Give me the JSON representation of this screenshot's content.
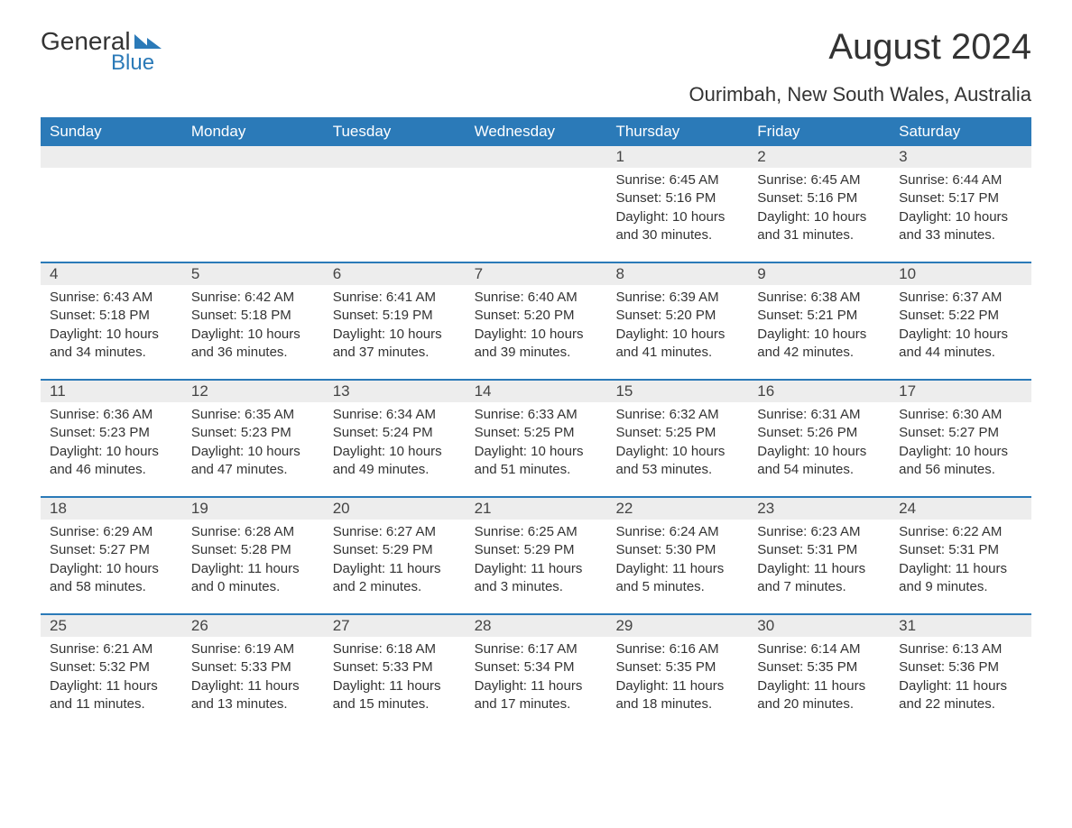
{
  "logo": {
    "text_general": "General",
    "text_blue": "Blue",
    "icon_color": "#2b7ab8"
  },
  "header": {
    "title": "August 2024",
    "location": "Ourimbah, New South Wales, Australia"
  },
  "colors": {
    "header_bg": "#2b7ab8",
    "header_text": "#ffffff",
    "daynum_bg": "#ededed",
    "week_border": "#2b7ab8",
    "body_text": "#333333",
    "page_bg": "#ffffff"
  },
  "weekdays": [
    "Sunday",
    "Monday",
    "Tuesday",
    "Wednesday",
    "Thursday",
    "Friday",
    "Saturday"
  ],
  "weeks": [
    [
      {
        "empty": true
      },
      {
        "empty": true
      },
      {
        "empty": true
      },
      {
        "empty": true
      },
      {
        "num": "1",
        "sunrise": "Sunrise: 6:45 AM",
        "sunset": "Sunset: 5:16 PM",
        "daylight1": "Daylight: 10 hours",
        "daylight2": "and 30 minutes."
      },
      {
        "num": "2",
        "sunrise": "Sunrise: 6:45 AM",
        "sunset": "Sunset: 5:16 PM",
        "daylight1": "Daylight: 10 hours",
        "daylight2": "and 31 minutes."
      },
      {
        "num": "3",
        "sunrise": "Sunrise: 6:44 AM",
        "sunset": "Sunset: 5:17 PM",
        "daylight1": "Daylight: 10 hours",
        "daylight2": "and 33 minutes."
      }
    ],
    [
      {
        "num": "4",
        "sunrise": "Sunrise: 6:43 AM",
        "sunset": "Sunset: 5:18 PM",
        "daylight1": "Daylight: 10 hours",
        "daylight2": "and 34 minutes."
      },
      {
        "num": "5",
        "sunrise": "Sunrise: 6:42 AM",
        "sunset": "Sunset: 5:18 PM",
        "daylight1": "Daylight: 10 hours",
        "daylight2": "and 36 minutes."
      },
      {
        "num": "6",
        "sunrise": "Sunrise: 6:41 AM",
        "sunset": "Sunset: 5:19 PM",
        "daylight1": "Daylight: 10 hours",
        "daylight2": "and 37 minutes."
      },
      {
        "num": "7",
        "sunrise": "Sunrise: 6:40 AM",
        "sunset": "Sunset: 5:20 PM",
        "daylight1": "Daylight: 10 hours",
        "daylight2": "and 39 minutes."
      },
      {
        "num": "8",
        "sunrise": "Sunrise: 6:39 AM",
        "sunset": "Sunset: 5:20 PM",
        "daylight1": "Daylight: 10 hours",
        "daylight2": "and 41 minutes."
      },
      {
        "num": "9",
        "sunrise": "Sunrise: 6:38 AM",
        "sunset": "Sunset: 5:21 PM",
        "daylight1": "Daylight: 10 hours",
        "daylight2": "and 42 minutes."
      },
      {
        "num": "10",
        "sunrise": "Sunrise: 6:37 AM",
        "sunset": "Sunset: 5:22 PM",
        "daylight1": "Daylight: 10 hours",
        "daylight2": "and 44 minutes."
      }
    ],
    [
      {
        "num": "11",
        "sunrise": "Sunrise: 6:36 AM",
        "sunset": "Sunset: 5:23 PM",
        "daylight1": "Daylight: 10 hours",
        "daylight2": "and 46 minutes."
      },
      {
        "num": "12",
        "sunrise": "Sunrise: 6:35 AM",
        "sunset": "Sunset: 5:23 PM",
        "daylight1": "Daylight: 10 hours",
        "daylight2": "and 47 minutes."
      },
      {
        "num": "13",
        "sunrise": "Sunrise: 6:34 AM",
        "sunset": "Sunset: 5:24 PM",
        "daylight1": "Daylight: 10 hours",
        "daylight2": "and 49 minutes."
      },
      {
        "num": "14",
        "sunrise": "Sunrise: 6:33 AM",
        "sunset": "Sunset: 5:25 PM",
        "daylight1": "Daylight: 10 hours",
        "daylight2": "and 51 minutes."
      },
      {
        "num": "15",
        "sunrise": "Sunrise: 6:32 AM",
        "sunset": "Sunset: 5:25 PM",
        "daylight1": "Daylight: 10 hours",
        "daylight2": "and 53 minutes."
      },
      {
        "num": "16",
        "sunrise": "Sunrise: 6:31 AM",
        "sunset": "Sunset: 5:26 PM",
        "daylight1": "Daylight: 10 hours",
        "daylight2": "and 54 minutes."
      },
      {
        "num": "17",
        "sunrise": "Sunrise: 6:30 AM",
        "sunset": "Sunset: 5:27 PM",
        "daylight1": "Daylight: 10 hours",
        "daylight2": "and 56 minutes."
      }
    ],
    [
      {
        "num": "18",
        "sunrise": "Sunrise: 6:29 AM",
        "sunset": "Sunset: 5:27 PM",
        "daylight1": "Daylight: 10 hours",
        "daylight2": "and 58 minutes."
      },
      {
        "num": "19",
        "sunrise": "Sunrise: 6:28 AM",
        "sunset": "Sunset: 5:28 PM",
        "daylight1": "Daylight: 11 hours",
        "daylight2": "and 0 minutes."
      },
      {
        "num": "20",
        "sunrise": "Sunrise: 6:27 AM",
        "sunset": "Sunset: 5:29 PM",
        "daylight1": "Daylight: 11 hours",
        "daylight2": "and 2 minutes."
      },
      {
        "num": "21",
        "sunrise": "Sunrise: 6:25 AM",
        "sunset": "Sunset: 5:29 PM",
        "daylight1": "Daylight: 11 hours",
        "daylight2": "and 3 minutes."
      },
      {
        "num": "22",
        "sunrise": "Sunrise: 6:24 AM",
        "sunset": "Sunset: 5:30 PM",
        "daylight1": "Daylight: 11 hours",
        "daylight2": "and 5 minutes."
      },
      {
        "num": "23",
        "sunrise": "Sunrise: 6:23 AM",
        "sunset": "Sunset: 5:31 PM",
        "daylight1": "Daylight: 11 hours",
        "daylight2": "and 7 minutes."
      },
      {
        "num": "24",
        "sunrise": "Sunrise: 6:22 AM",
        "sunset": "Sunset: 5:31 PM",
        "daylight1": "Daylight: 11 hours",
        "daylight2": "and 9 minutes."
      }
    ],
    [
      {
        "num": "25",
        "sunrise": "Sunrise: 6:21 AM",
        "sunset": "Sunset: 5:32 PM",
        "daylight1": "Daylight: 11 hours",
        "daylight2": "and 11 minutes."
      },
      {
        "num": "26",
        "sunrise": "Sunrise: 6:19 AM",
        "sunset": "Sunset: 5:33 PM",
        "daylight1": "Daylight: 11 hours",
        "daylight2": "and 13 minutes."
      },
      {
        "num": "27",
        "sunrise": "Sunrise: 6:18 AM",
        "sunset": "Sunset: 5:33 PM",
        "daylight1": "Daylight: 11 hours",
        "daylight2": "and 15 minutes."
      },
      {
        "num": "28",
        "sunrise": "Sunrise: 6:17 AM",
        "sunset": "Sunset: 5:34 PM",
        "daylight1": "Daylight: 11 hours",
        "daylight2": "and 17 minutes."
      },
      {
        "num": "29",
        "sunrise": "Sunrise: 6:16 AM",
        "sunset": "Sunset: 5:35 PM",
        "daylight1": "Daylight: 11 hours",
        "daylight2": "and 18 minutes."
      },
      {
        "num": "30",
        "sunrise": "Sunrise: 6:14 AM",
        "sunset": "Sunset: 5:35 PM",
        "daylight1": "Daylight: 11 hours",
        "daylight2": "and 20 minutes."
      },
      {
        "num": "31",
        "sunrise": "Sunrise: 6:13 AM",
        "sunset": "Sunset: 5:36 PM",
        "daylight1": "Daylight: 11 hours",
        "daylight2": "and 22 minutes."
      }
    ]
  ]
}
